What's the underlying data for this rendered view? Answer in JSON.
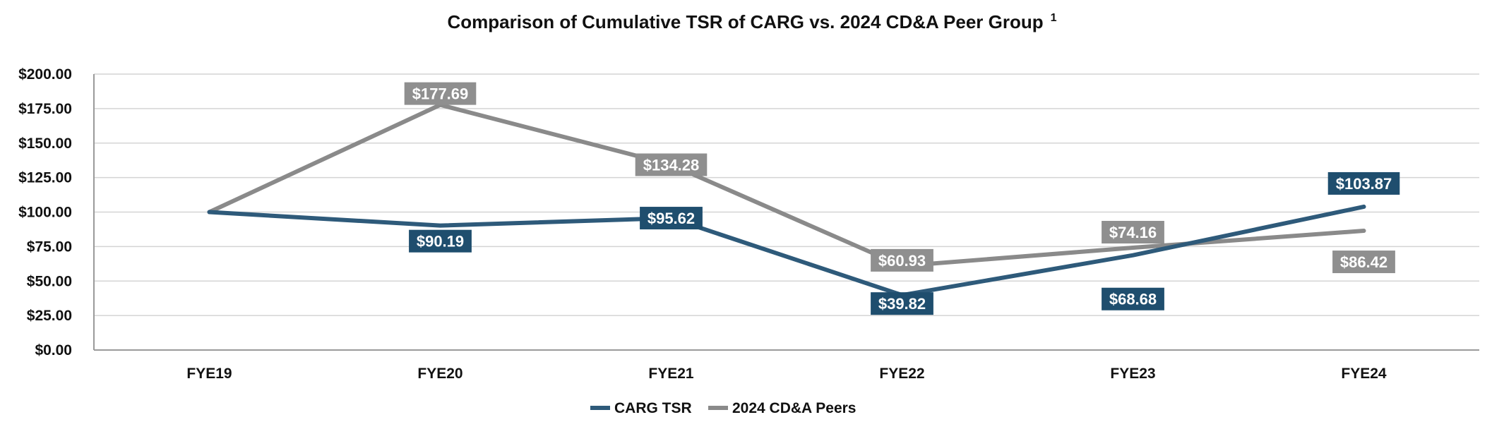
{
  "chart_data": {
    "type": "line",
    "title": "Comparison of Cumulative TSR of CARG vs. 2024 CD&A Peer Group",
    "title_superscript": "1",
    "categories": [
      "FYE19",
      "FYE20",
      "FYE21",
      "FYE22",
      "FYE23",
      "FYE24"
    ],
    "ylim": [
      0,
      200
    ],
    "yticks": [
      0,
      25,
      50,
      75,
      100,
      125,
      150,
      175,
      200
    ],
    "ytick_labels": [
      "$0.00",
      "$25.00",
      "$50.00",
      "$75.00",
      "$100.00",
      "$125.00",
      "$150.00",
      "$175.00",
      "$200.00"
    ],
    "grid": true,
    "legend_position": "bottom",
    "series": [
      {
        "name": "CARG TSR",
        "color": "#2e5a7a",
        "label_bg": "#1f4e6e",
        "values": [
          100,
          90.19,
          95.62,
          39.82,
          68.68,
          103.87
        ],
        "labels": [
          "",
          "$90.19",
          "$95.62",
          "$39.82",
          "$68.68",
          "$103.87"
        ]
      },
      {
        "name": "2024 CD&A Peers",
        "color": "#8a8a8a",
        "label_bg": "#8f8f8f",
        "values": [
          100,
          177.69,
          134.28,
          60.93,
          74.16,
          86.42
        ],
        "labels": [
          "",
          "$177.69",
          "$134.28",
          "$60.93",
          "$74.16",
          "$86.42"
        ]
      }
    ]
  }
}
